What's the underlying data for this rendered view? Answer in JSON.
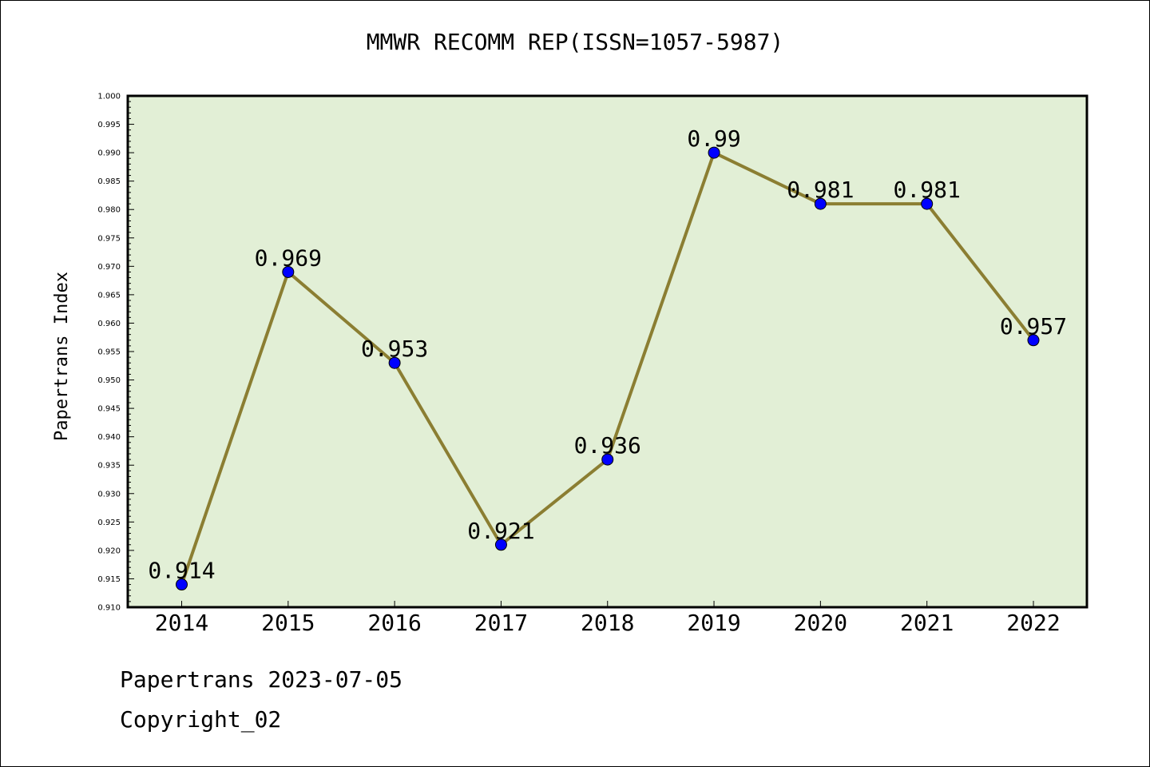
{
  "chart_data": {
    "type": "line",
    "title": "MMWR RECOMM REP(ISSN=1057-5987)",
    "xlabel": "",
    "ylabel": "Papertrans Index",
    "categories": [
      "2014",
      "2015",
      "2016",
      "2017",
      "2018",
      "2019",
      "2020",
      "2021",
      "2022"
    ],
    "series": [
      {
        "values": [
          0.914,
          0.969,
          0.953,
          0.921,
          0.936,
          0.99,
          0.981,
          0.981,
          0.957
        ]
      }
    ],
    "data_labels": [
      "0.914",
      "0.969",
      "0.953",
      "0.921",
      "0.936",
      "0.99",
      "0.981",
      "0.981",
      "0.957"
    ],
    "ylim": [
      0.91,
      1.0
    ],
    "yticks": [
      "0.910",
      "0.915",
      "0.920",
      "0.925",
      "0.930",
      "0.935",
      "0.940",
      "0.945",
      "0.950",
      "0.955",
      "0.960",
      "0.965",
      "0.970",
      "0.975",
      "0.980",
      "0.985",
      "0.990",
      "0.995",
      "1.000"
    ],
    "grid": false,
    "legend": "none",
    "colors": {
      "plot_background": "#e2efd6",
      "line": "#8b7e32",
      "marker": "#0000ff"
    }
  },
  "footer": {
    "date_text": "Papertrans 2023-07-05",
    "copyright_text": "Copyright_02"
  }
}
